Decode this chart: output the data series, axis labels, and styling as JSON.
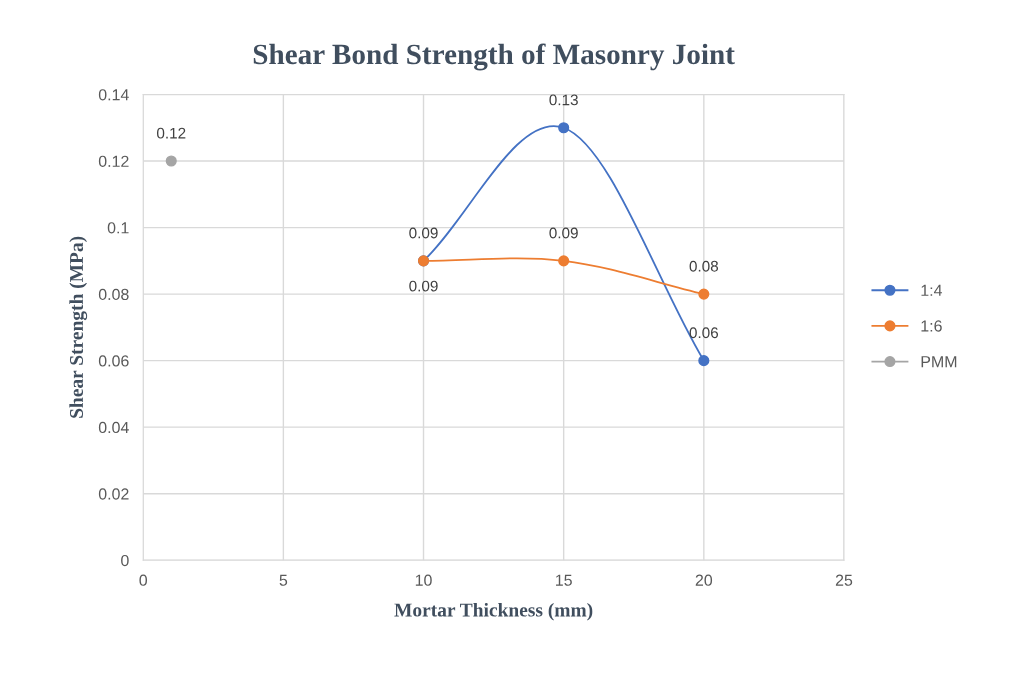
{
  "chart_data": {
    "type": "line",
    "title": "Shear Bond Strength of Masonry Joint",
    "xlabel": "Mortar Thickness (mm)",
    "ylabel": "Shear Strength (MPa)",
    "xlim": [
      0,
      25
    ],
    "xticks": [
      0,
      5,
      10,
      15,
      20,
      25
    ],
    "ylim": [
      0,
      0.14
    ],
    "yticks": [
      0,
      0.02,
      0.04,
      0.06,
      0.08,
      0.1,
      0.12,
      0.14
    ],
    "grid": true,
    "legend": "right",
    "marker": "circle",
    "line_style": "solid",
    "data_labels": true,
    "series": [
      {
        "name": "1:4",
        "color": "#4472c4",
        "x": [
          10,
          15,
          20
        ],
        "values": [
          0.09,
          0.13,
          0.06
        ]
      },
      {
        "name": "1:6",
        "color": "#ed7d31",
        "x": [
          10,
          15,
          20
        ],
        "values": [
          0.09,
          0.09,
          0.08
        ]
      },
      {
        "name": "PMM",
        "color": "#a5a5a5",
        "x": [
          1
        ],
        "values": [
          0.12
        ]
      }
    ]
  }
}
